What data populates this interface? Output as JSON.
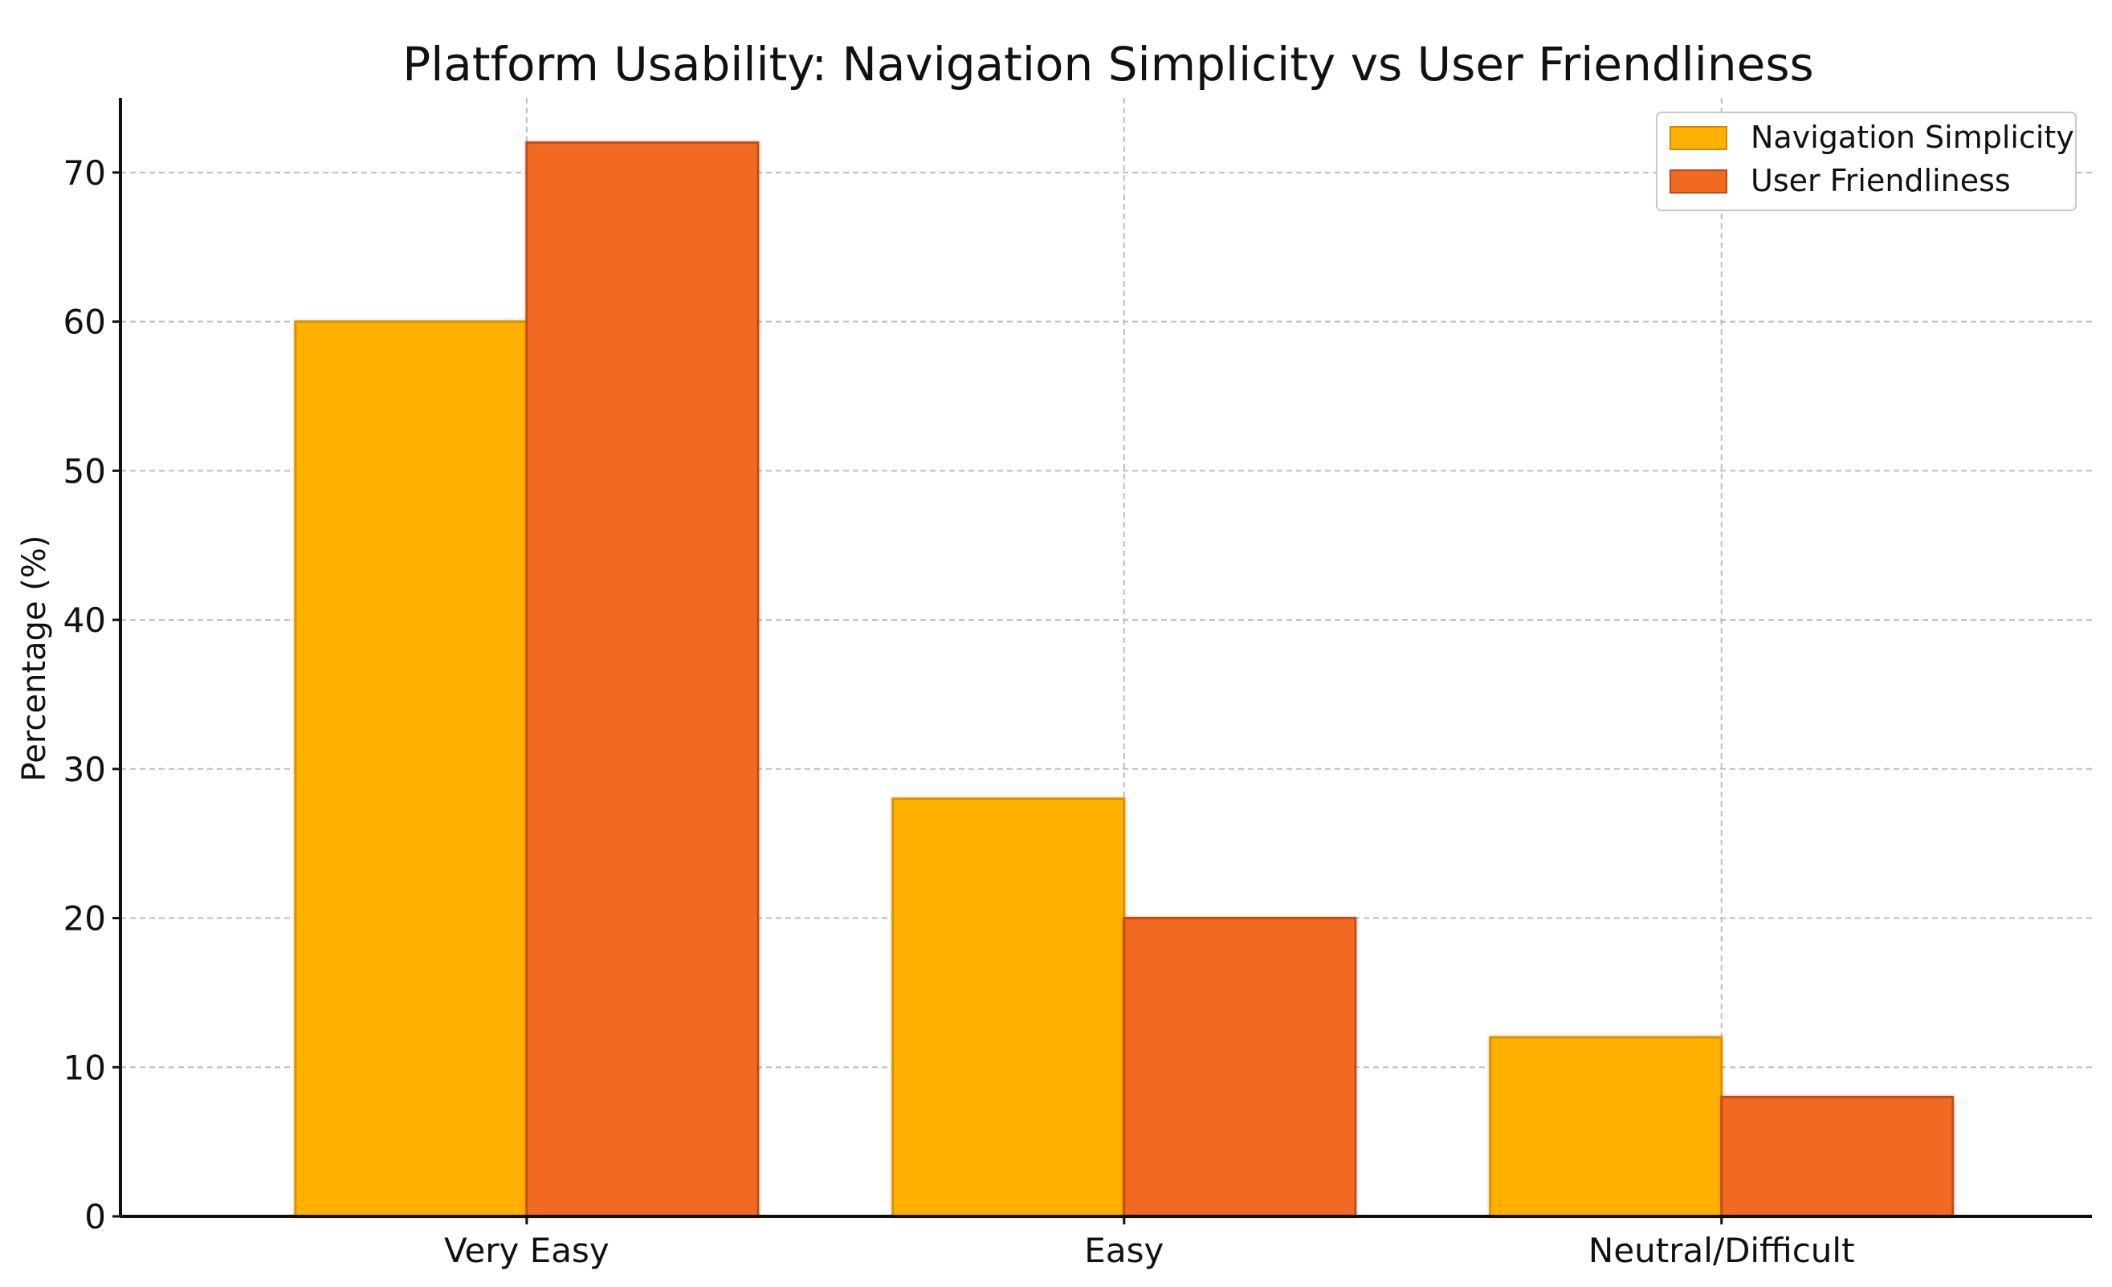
{
  "chart_data": {
    "type": "bar",
    "title": "Platform Usability: Navigation Simplicity vs User Friendliness",
    "xlabel": "",
    "ylabel": "Percentage (%)",
    "categories": [
      "Very Easy",
      "Easy",
      "Neutral/Difficult"
    ],
    "series": [
      {
        "name": "Navigation Simplicity",
        "values": [
          60,
          28,
          12
        ],
        "color": "#FFB000"
      },
      {
        "name": "User Friendliness",
        "values": [
          72,
          20,
          8
        ],
        "color": "#F26A22"
      }
    ],
    "ylim": [
      0,
      75
    ],
    "yticks": [
      0,
      10,
      20,
      30,
      40,
      50,
      60,
      70
    ],
    "grid": true,
    "legend": "top-right"
  }
}
